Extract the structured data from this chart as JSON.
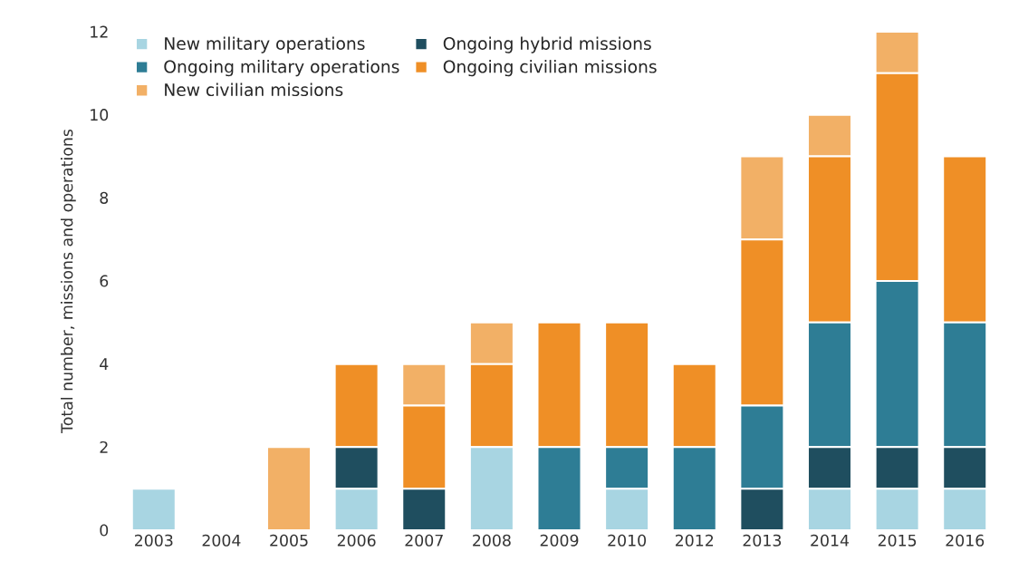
{
  "chart_data": {
    "type": "bar",
    "stacked": true,
    "ylabel": "Total number, missions and operations",
    "categories": [
      "2003",
      "2004",
      "2005",
      "2006",
      "2007",
      "2008",
      "2009",
      "2010",
      "2012",
      "2013",
      "2014",
      "2015",
      "2016"
    ],
    "series": [
      {
        "name": "New military operations",
        "color": "#a8d5e2",
        "values": [
          1,
          0,
          0,
          1,
          0,
          2,
          0,
          1,
          0,
          0,
          1,
          1,
          1
        ]
      },
      {
        "name": "Ongoing hybrid missions",
        "color": "#1f4e5f",
        "values": [
          0,
          0,
          0,
          1,
          1,
          0,
          0,
          0,
          0,
          1,
          1,
          1,
          1
        ]
      },
      {
        "name": "Ongoing military operations",
        "color": "#2e7d95",
        "values": [
          0,
          0,
          0,
          0,
          0,
          0,
          2,
          1,
          2,
          2,
          3,
          4,
          3
        ]
      },
      {
        "name": "Ongoing civilian missions",
        "color": "#ef8f26",
        "values": [
          0,
          0,
          0,
          2,
          2,
          2,
          3,
          3,
          2,
          4,
          4,
          5,
          4
        ]
      },
      {
        "name": "New civilian missions",
        "color": "#f2b066",
        "values": [
          0,
          0,
          2,
          0,
          1,
          1,
          0,
          0,
          0,
          2,
          1,
          1,
          0
        ]
      }
    ],
    "ylim": [
      0,
      12
    ],
    "yticks": [
      0,
      2,
      4,
      6,
      8,
      10,
      12
    ],
    "grid": false,
    "legend": "top left"
  }
}
